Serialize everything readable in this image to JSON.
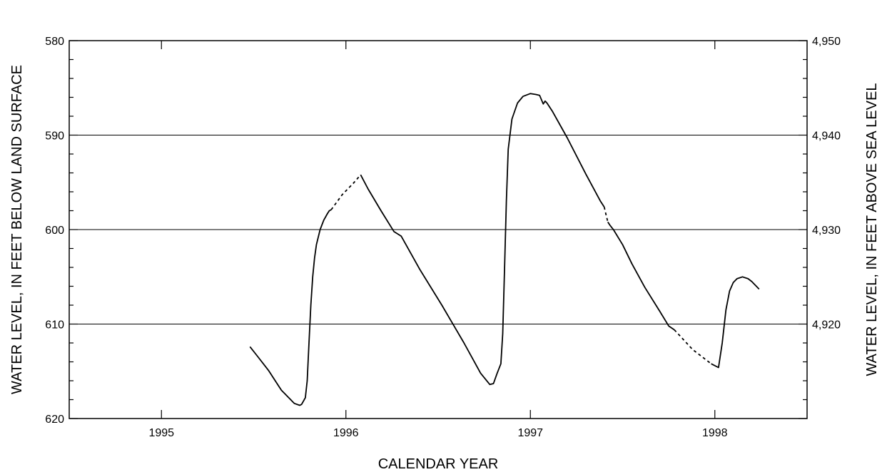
{
  "chart_data": {
    "type": "line",
    "title": "",
    "xlabel": "CALENDAR YEAR",
    "ylabel": "WATER LEVEL, IN FEET BELOW LAND SURFACE",
    "y2label": "WATER LEVEL, IN FEET ABOVE SEA LEVEL",
    "xlim": [
      1994.5,
      1998.5
    ],
    "ylim": [
      580,
      620
    ],
    "y_inverted": true,
    "y2lim": [
      4950,
      4910
    ],
    "x_tick_labels": [
      "1995",
      "1996",
      "1997",
      "1998"
    ],
    "y_ticks": [
      580,
      590,
      600,
      610,
      620
    ],
    "y_tick_labels": [
      "580",
      "590",
      "600",
      "610",
      "620"
    ],
    "y2_ticks": [
      4950,
      4940,
      4930,
      4920
    ],
    "y2_tick_labels": [
      "4,950",
      "4,940",
      "4,930",
      "4,920"
    ],
    "grid": "horizontal",
    "series": [
      {
        "style": "solid",
        "x": [
          1995.48,
          1995.52,
          1995.58,
          1995.65,
          1995.72,
          1995.75,
          1995.76,
          1995.78,
          1995.79,
          1995.8,
          1995.81,
          1995.82,
          1995.83,
          1995.84,
          1995.86,
          1995.88,
          1995.9,
          1995.91,
          1995.92
        ],
        "y": [
          612.4,
          613.4,
          614.9,
          617.0,
          618.4,
          618.6,
          618.5,
          617.8,
          616.0,
          612.0,
          608.0,
          605.0,
          603.0,
          601.6,
          600.0,
          599.0,
          598.3,
          598.0,
          597.9
        ]
      },
      {
        "style": "dashed",
        "x": [
          1995.92,
          1995.98,
          1996.04,
          1996.08
        ],
        "y": [
          597.9,
          596.3,
          595.1,
          594.2
        ]
      },
      {
        "style": "solid",
        "x": [
          1996.08,
          1996.12,
          1996.19,
          1996.26,
          1996.3,
          1996.4,
          1996.52,
          1996.64,
          1996.73,
          1996.78,
          1996.8,
          1996.82,
          1996.84,
          1996.85,
          1996.86,
          1996.87,
          1996.88,
          1996.9,
          1996.93,
          1996.96,
          1997.0,
          1997.03,
          1997.05,
          1997.07,
          1997.08,
          1997.09,
          1997.12,
          1997.2,
          1997.3,
          1997.38,
          1997.4
        ],
        "y": [
          594.2,
          595.7,
          598.0,
          600.2,
          600.7,
          604.2,
          608.0,
          612.0,
          615.2,
          616.4,
          616.3,
          615.2,
          614.2,
          611.0,
          604.0,
          597.0,
          591.5,
          588.3,
          586.6,
          585.9,
          585.6,
          585.7,
          585.8,
          586.7,
          586.4,
          586.6,
          587.5,
          590.3,
          594.1,
          597.0,
          597.6
        ]
      },
      {
        "style": "dashed",
        "x": [
          1997.4,
          1997.41,
          1997.42
        ],
        "y": [
          597.6,
          598.4,
          599.2
        ]
      },
      {
        "style": "solid",
        "x": [
          1997.42,
          1997.43,
          1997.45,
          1997.5,
          1997.55,
          1997.62,
          1997.7,
          1997.75,
          1997.78
        ],
        "y": [
          599.2,
          599.5,
          600.0,
          601.6,
          603.6,
          606.1,
          608.6,
          610.2,
          610.6
        ]
      },
      {
        "style": "dashed",
        "x": [
          1997.78,
          1997.88,
          1997.98
        ],
        "y": [
          610.6,
          612.7,
          614.2
        ]
      },
      {
        "style": "solid",
        "x": [
          1997.98,
          1998.02,
          1998.04,
          1998.06,
          1998.08,
          1998.1,
          1998.12,
          1998.15,
          1998.18,
          1998.2,
          1998.24
        ],
        "y": [
          614.2,
          614.6,
          612.0,
          608.5,
          606.5,
          605.6,
          605.2,
          605.0,
          605.2,
          605.5,
          606.3
        ]
      }
    ]
  }
}
